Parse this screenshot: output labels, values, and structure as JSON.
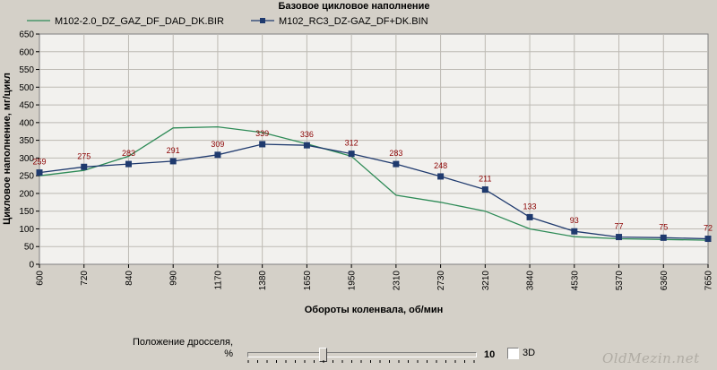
{
  "chart_data": {
    "type": "line",
    "title": "Базовое цикловое наполнение",
    "xlabel": "Обороты коленвала, об/мин",
    "ylabel": "Цикловое наполнение, мг/цикл",
    "categories": [
      "600",
      "720",
      "840",
      "990",
      "1170",
      "1380",
      "1650",
      "1950",
      "2310",
      "2730",
      "3210",
      "3840",
      "4530",
      "5370",
      "6360",
      "7650"
    ],
    "ylim": [
      0,
      650
    ],
    "yticks": [
      0,
      50,
      100,
      150,
      200,
      250,
      300,
      350,
      400,
      450,
      500,
      550,
      600,
      650
    ],
    "grid": true,
    "legend_position": "top",
    "series": [
      {
        "name": "M102-2.0_DZ_GAZ_DF_DAD_DK.BIR",
        "color": "#2e8b57",
        "markers": false,
        "values": [
          250,
          265,
          305,
          385,
          388,
          372,
          340,
          305,
          195,
          175,
          150,
          100,
          78,
          72,
          70,
          68
        ]
      },
      {
        "name": "M102_RC3_DZ-GAZ_DF+DK.BIN",
        "color": "#1f3a6e",
        "markers": true,
        "data_labels": true,
        "values": [
          259,
          275,
          283,
          291,
          309,
          339,
          336,
          312,
          283,
          248,
          211,
          133,
          93,
          77,
          75,
          72
        ]
      }
    ]
  },
  "controls": {
    "throttle_label_line1": "Положение дросселя,",
    "throttle_label_line2": "%",
    "throttle_value": "10",
    "throttle_fraction": 0.33,
    "checkbox_3d_label": "3D",
    "checkbox_3d_checked": false
  },
  "watermark": "OldMezin.net"
}
